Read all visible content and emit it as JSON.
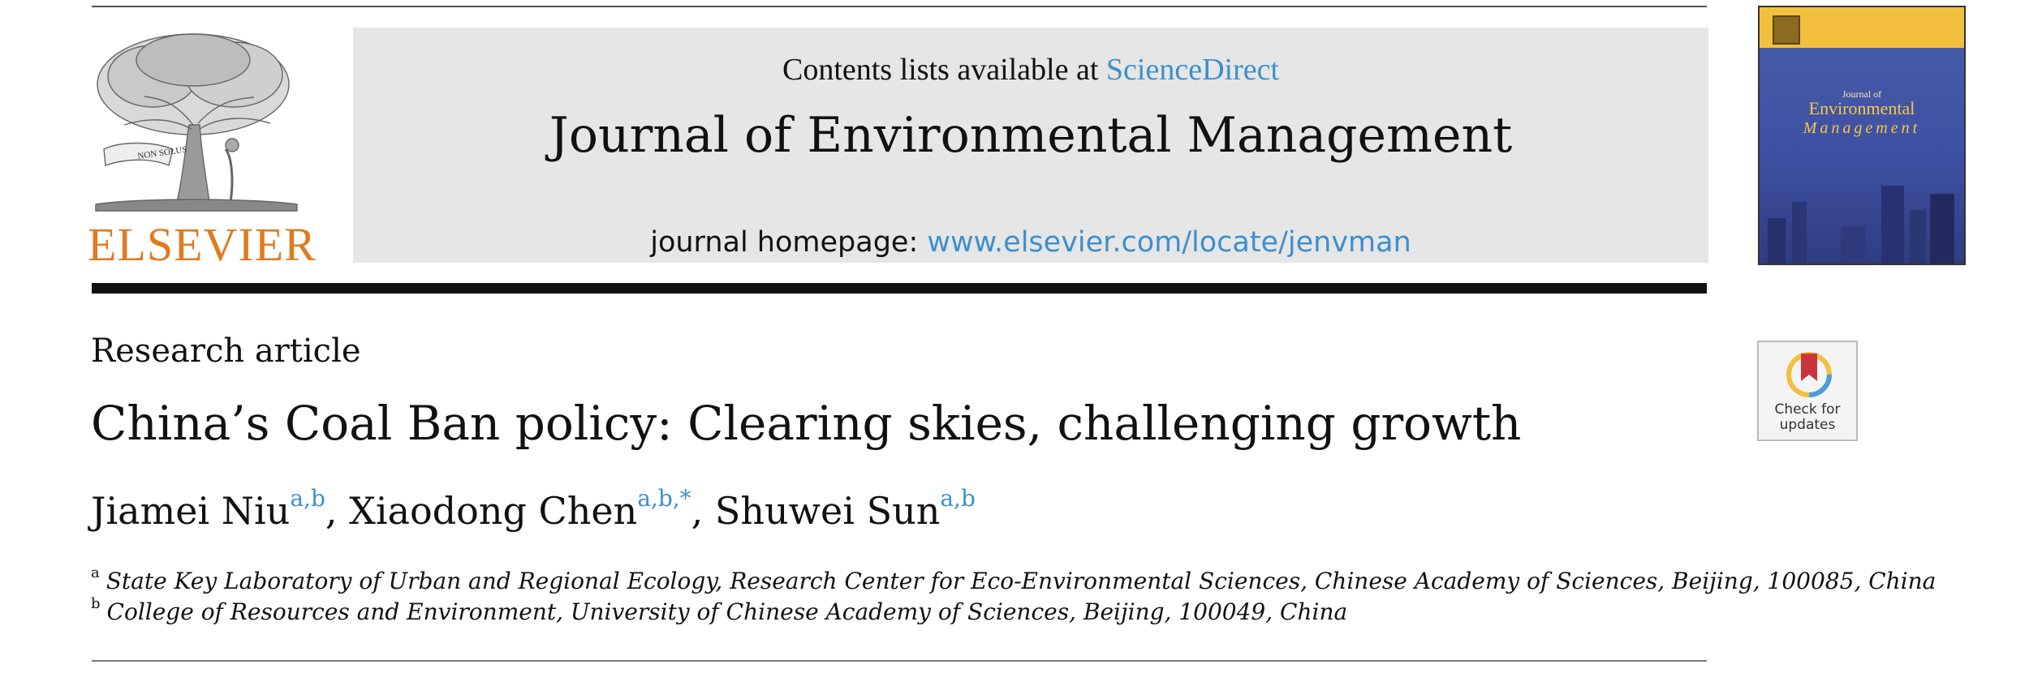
{
  "header": {
    "publisher": "ELSEVIER",
    "contents_prefix": "Contents lists available at ",
    "contents_link": "ScienceDirect",
    "journal_title": "Journal of Environmental Management",
    "homepage_prefix": "journal homepage: ",
    "homepage_link": "www.elsevier.com/locate/jenvman",
    "logo_motto": "NON SOLUS"
  },
  "cover": {
    "journal_of": "Journal of",
    "environmental": "Environmental",
    "management": "Management"
  },
  "article": {
    "type": "Research article",
    "title": "China’s Coal Ban policy: Clearing skies, challenging growth",
    "authors": [
      {
        "name": "Jiamei Niu",
        "marks": "a,b"
      },
      {
        "name": "Xiaodong Chen",
        "marks": "a,b,*"
      },
      {
        "name": "Shuwei Sun",
        "marks": "a,b"
      }
    ],
    "author_sep": ", ",
    "affiliations": [
      {
        "mark": "a",
        "text": "State Key Laboratory of Urban and Regional Ecology, Research Center for Eco-Environmental Sciences, Chinese Academy of Sciences, Beijing, 100085, China"
      },
      {
        "mark": "b",
        "text": "College of Resources and Environment, University of Chinese Academy of Sciences, Beijing, 100049, China"
      }
    ]
  },
  "check_updates": {
    "line1": "Check for",
    "line2": "updates"
  },
  "colors": {
    "link": "#3d8fcc",
    "publisher_orange": "#e07b1e",
    "banner_gray": "#e6e6e6",
    "cover_band": "#f2bf3f",
    "cover_blue": "#3d4fa0"
  }
}
